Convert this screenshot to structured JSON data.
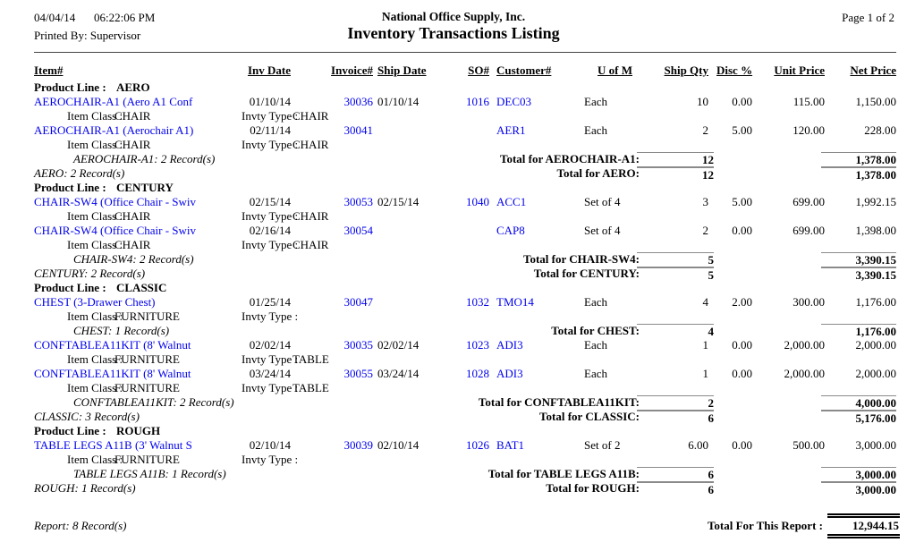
{
  "page": {
    "date": "04/04/14",
    "time": "06:22:06 PM",
    "printed_by": "Printed By: Supervisor",
    "company": "National Office Supply, Inc.",
    "title": "Inventory Transactions Listing",
    "page_label": "Page 1 of 2"
  },
  "colors": {
    "link_blue": "#0000EE",
    "text": "#000000",
    "total_rule_gray": "#8a8a8a"
  },
  "columns": {
    "item": "Item#",
    "inv_date": "Inv Date",
    "invoice": "Invoice#",
    "ship_date": "Ship Date",
    "so": "SO#",
    "customer": "Customer#",
    "uom": "U of M",
    "ship_qty": "Ship Qty",
    "disc": "Disc %",
    "unit_price": "Unit Price",
    "net_price": "Net Price"
  },
  "labels": {
    "product_line": "Product Line :",
    "item_class": "Item Class :",
    "invty_type": "Invty Type :"
  },
  "sections": [
    {
      "product_line": "AERO",
      "record_note": "AERO: 2 Record(s)",
      "total_label": "Total for AERO:",
      "total_qty": "12",
      "total_net": "1,378.00",
      "groups": [
        {
          "record_note": "AEROCHAIR-A1: 2 Record(s)",
          "total_label": "Total for AEROCHAIR-A1:",
          "total_qty": "12",
          "total_net": "1,378.00",
          "rows": [
            {
              "item": "AEROCHAIR-A1 (Aero A1 Conf",
              "inv_date": "01/10/14",
              "invoice": "30036",
              "ship_date": "01/10/14",
              "so": "1016",
              "customer": "DEC03",
              "uom": "Each",
              "qty": "10",
              "disc": "0.00",
              "unit": "115.00",
              "net": "1,150.00",
              "item_class": "CHAIR",
              "invty_type": "CHAIR"
            },
            {
              "item": "AEROCHAIR-A1 (Aerochair A1)",
              "inv_date": "02/11/14",
              "invoice": "30041",
              "ship_date": "",
              "so": "",
              "customer": "AER1",
              "uom": "Each",
              "qty": "2",
              "disc": "5.00",
              "unit": "120.00",
              "net": "228.00",
              "item_class": "CHAIR",
              "invty_type": "CHAIR"
            }
          ]
        }
      ]
    },
    {
      "product_line": "CENTURY",
      "record_note": "CENTURY: 2 Record(s)",
      "total_label": "Total for CENTURY:",
      "total_qty": "5",
      "total_net": "3,390.15",
      "groups": [
        {
          "record_note": "CHAIR-SW4: 2 Record(s)",
          "total_label": "Total for CHAIR-SW4:",
          "total_qty": "5",
          "total_net": "3,390.15",
          "rows": [
            {
              "item": "CHAIR-SW4 (Office Chair - Swiv",
              "inv_date": "02/15/14",
              "invoice": "30053",
              "ship_date": "02/15/14",
              "so": "1040",
              "customer": "ACC1",
              "uom": "Set of 4",
              "qty": "3",
              "disc": "5.00",
              "unit": "699.00",
              "net": "1,992.15",
              "item_class": "CHAIR",
              "invty_type": "CHAIR"
            },
            {
              "item": "CHAIR-SW4 (Office Chair - Swiv",
              "inv_date": "02/16/14",
              "invoice": "30054",
              "ship_date": "",
              "so": "",
              "customer": "CAP8",
              "uom": "Set of 4",
              "qty": "2",
              "disc": "0.00",
              "unit": "699.00",
              "net": "1,398.00",
              "item_class": "CHAIR",
              "invty_type": "CHAIR"
            }
          ]
        }
      ]
    },
    {
      "product_line": "CLASSIC",
      "record_note": "CLASSIC: 3 Record(s)",
      "total_label": "Total for CLASSIC:",
      "total_qty": "6",
      "total_net": "5,176.00",
      "groups": [
        {
          "record_note": "CHEST: 1 Record(s)",
          "total_label": "Total for CHEST:",
          "total_qty": "4",
          "total_net": "1,176.00",
          "rows": [
            {
              "item": "CHEST (3-Drawer Chest)",
              "inv_date": "01/25/14",
              "invoice": "30047",
              "ship_date": "",
              "so": "1032",
              "customer": "TMO14",
              "uom": "Each",
              "qty": "4",
              "disc": "2.00",
              "unit": "300.00",
              "net": "1,176.00",
              "item_class": "FURNITURE",
              "invty_type": ""
            }
          ]
        },
        {
          "record_note": "CONFTABLEA11KIT: 2 Record(s)",
          "total_label": "Total for CONFTABLEA11KIT:",
          "total_qty": "2",
          "total_net": "4,000.00",
          "rows": [
            {
              "item": "CONFTABLEA11KIT (8' Walnut",
              "inv_date": "02/02/14",
              "invoice": "30035",
              "ship_date": "02/02/14",
              "so": "1023",
              "customer": "ADI3",
              "uom": "Each",
              "qty": "1",
              "disc": "0.00",
              "unit": "2,000.00",
              "net": "2,000.00",
              "item_class": "FURNITURE",
              "invty_type": "TABLE"
            },
            {
              "item": "CONFTABLEA11KIT (8' Walnut",
              "inv_date": "03/24/14",
              "invoice": "30055",
              "ship_date": "03/24/14",
              "so": "1028",
              "customer": "ADI3",
              "uom": "Each",
              "qty": "1",
              "disc": "0.00",
              "unit": "2,000.00",
              "net": "2,000.00",
              "item_class": "FURNITURE",
              "invty_type": "TABLE"
            }
          ]
        }
      ]
    },
    {
      "product_line": "ROUGH",
      "record_note": "ROUGH: 1 Record(s)",
      "total_label": "Total for ROUGH:",
      "total_qty": "6",
      "total_net": "3,000.00",
      "groups": [
        {
          "record_note": "TABLE LEGS A11B: 1 Record(s)",
          "total_label": "Total for TABLE LEGS A11B:",
          "total_qty": "6",
          "total_net": "3,000.00",
          "rows": [
            {
              "item": "TABLE LEGS A11B (3' Walnut S",
              "inv_date": "02/10/14",
              "invoice": "30039",
              "ship_date": "02/10/14",
              "so": "1026",
              "customer": "BAT1",
              "uom": "Set of 2",
              "qty": "6.00",
              "disc": "0.00",
              "unit": "500.00",
              "net": "3,000.00",
              "item_class": "FURNITURE",
              "invty_type": ""
            }
          ]
        }
      ]
    }
  ],
  "footer": {
    "report_note": "Report: 8 Record(s)",
    "total_label": "Total For This Report :",
    "total_value": "12,944.15"
  }
}
